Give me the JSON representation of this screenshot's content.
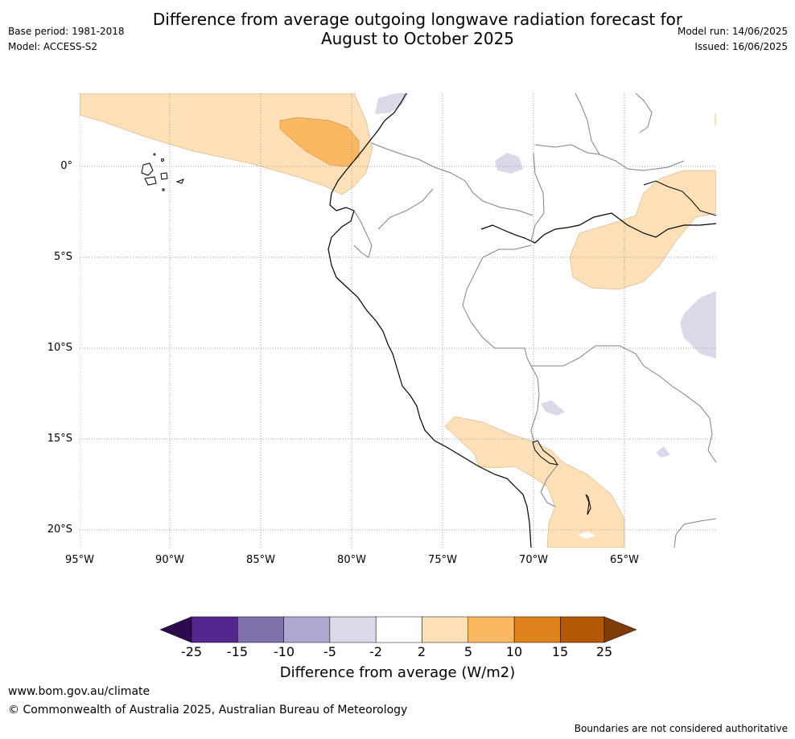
{
  "header": {
    "title_line1": "Difference from average outgoing longwave radiation forecast for",
    "title_line2": "August to October 2025",
    "base_period": "Base period: 1981-2018",
    "model": "Model: ACCESS-S2",
    "model_run": "Model run: 14/06/2025",
    "issued": "Issued: 16/06/2025"
  },
  "map": {
    "lat_labels": [
      "0°",
      "5°S",
      "10°S",
      "15°S",
      "20°S"
    ],
    "lon_labels": [
      "95°W",
      "90°W",
      "85°W",
      "80°W",
      "75°W",
      "70°W",
      "65°W"
    ],
    "gridlines": true
  },
  "colorbar": {
    "ticks": [
      "-25",
      "-15",
      "-10",
      "-5",
      "-2",
      "2",
      "5",
      "10",
      "15",
      "25"
    ],
    "colors": [
      "#2d0a4e",
      "#54278f",
      "#7f6faa",
      "#b0a8d0",
      "#d9d9ea",
      "#ffffff",
      "#fde0b8",
      "#fbb862",
      "#e0821a",
      "#b35806",
      "#7f3b08"
    ],
    "title": "Difference from average (W/m2)"
  },
  "footer": {
    "url": "www.bom.gov.au/climate",
    "copyright": "© Commonwealth of Australia 2025, Australian Bureau of Meteorology",
    "disclaimer": "Boundaries are not considered authoritative"
  }
}
